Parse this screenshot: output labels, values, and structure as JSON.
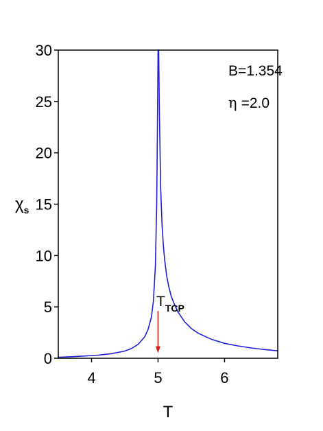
{
  "chart_data": {
    "type": "line",
    "xlabel": "T",
    "ylabel_main": "χ",
    "ylabel_sub": "s",
    "xlim": [
      3.5,
      6.8
    ],
    "ylim": [
      0,
      30
    ],
    "xticks": [
      4,
      5,
      6
    ],
    "yticks": [
      0,
      5,
      10,
      15,
      20,
      25,
      30
    ],
    "grid": false,
    "series": [
      {
        "color": "#1f1fd6",
        "x": [
          3.5,
          3.7,
          3.9,
          4.1,
          4.3,
          4.5,
          4.6,
          4.7,
          4.8,
          4.85,
          4.9,
          4.93,
          4.96,
          4.98,
          4.99,
          5.0,
          5.01,
          5.02,
          5.04,
          5.06,
          5.08,
          5.1,
          5.13,
          5.16,
          5.2,
          5.25,
          5.3,
          5.4,
          5.5,
          5.6,
          5.8,
          6.0,
          6.2,
          6.4,
          6.6,
          6.8
        ],
        "y": [
          0.1,
          0.15,
          0.22,
          0.3,
          0.45,
          0.7,
          0.95,
          1.35,
          2.1,
          2.8,
          4.0,
          5.6,
          9.0,
          15.0,
          22.0,
          30.0,
          30.0,
          24.0,
          16.5,
          13.0,
          11.0,
          9.5,
          8.0,
          7.0,
          6.0,
          5.2,
          4.5,
          3.55,
          2.9,
          2.45,
          1.85,
          1.45,
          1.2,
          1.0,
          0.85,
          0.72
        ]
      }
    ],
    "annotations": {
      "b_text": "B=1.354",
      "eta_symbol": "η",
      "eta_value": "=2.0",
      "tcp_main": "T",
      "tcp_sub": "TCP",
      "arrow_color": "#d42020",
      "arrow_x": 5.0,
      "arrow_y_start": 4.6,
      "arrow_y_end": 0.5
    }
  }
}
